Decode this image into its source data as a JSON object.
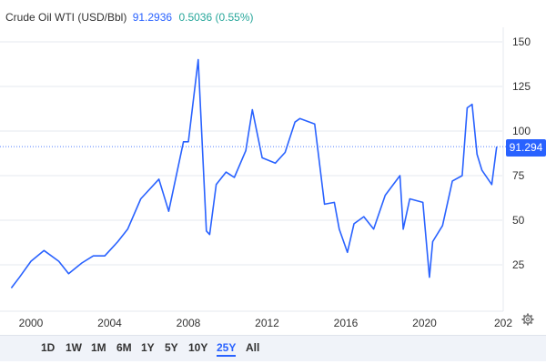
{
  "header": {
    "title": "Crude Oil WTI (USD/Bbl)",
    "price": "91.2936",
    "change": "0.5036 (0.55%)"
  },
  "price_tag": "91.294",
  "icons": {
    "settings": "gear-icon"
  },
  "colors": {
    "line": "#2962ff",
    "change_positive": "#26a69a",
    "range_bar": "#f0f3f9"
  },
  "ranges": [
    "1D",
    "1W",
    "1M",
    "6M",
    "1Y",
    "5Y",
    "10Y",
    "25Y",
    "All"
  ],
  "active_range": "25Y",
  "chart_data": {
    "type": "line",
    "title": "Crude Oil WTI (USD/Bbl)",
    "xlabel": "",
    "ylabel": "",
    "x_ticks": [
      "2000",
      "2004",
      "2008",
      "2012",
      "2016",
      "2020",
      "202"
    ],
    "y_ticks": [
      25,
      50,
      75,
      100,
      125,
      150
    ],
    "ylim": [
      0,
      160
    ],
    "grid": "horizontal",
    "current_value": 91.294,
    "series": [
      {
        "name": "",
        "x": [
          "1999-01",
          "1999-06",
          "2000-01",
          "2000-09",
          "2001-06",
          "2001-12",
          "2002-08",
          "2003-03",
          "2003-10",
          "2004-06",
          "2004-12",
          "2005-08",
          "2006-07",
          "2007-01",
          "2007-10",
          "2008-01",
          "2008-07",
          "2008-12",
          "2009-02",
          "2009-06",
          "2009-12",
          "2010-05",
          "2010-12",
          "2011-04",
          "2011-10",
          "2012-06",
          "2012-12",
          "2013-06",
          "2013-09",
          "2014-06",
          "2014-12",
          "2015-06",
          "2015-09",
          "2016-02",
          "2016-06",
          "2016-12",
          "2017-06",
          "2018-01",
          "2018-10",
          "2018-12",
          "2019-04",
          "2019-12",
          "2020-04",
          "2020-06",
          "2020-12",
          "2021-06",
          "2021-12",
          "2022-03",
          "2022-06",
          "2022-09",
          "2022-12",
          "2023-06",
          "2023-09"
        ],
        "y": [
          12,
          18,
          27,
          33,
          27,
          20,
          26,
          30,
          30,
          38,
          45,
          62,
          73,
          55,
          94,
          94,
          140,
          44,
          42,
          70,
          77,
          74,
          89,
          112,
          85,
          82,
          88,
          105,
          107,
          104,
          59,
          60,
          45,
          32,
          48,
          52,
          45,
          64,
          75,
          45,
          62,
          60,
          18,
          38,
          47,
          72,
          75,
          113,
          115,
          87,
          78,
          70,
          91.3
        ]
      }
    ]
  }
}
